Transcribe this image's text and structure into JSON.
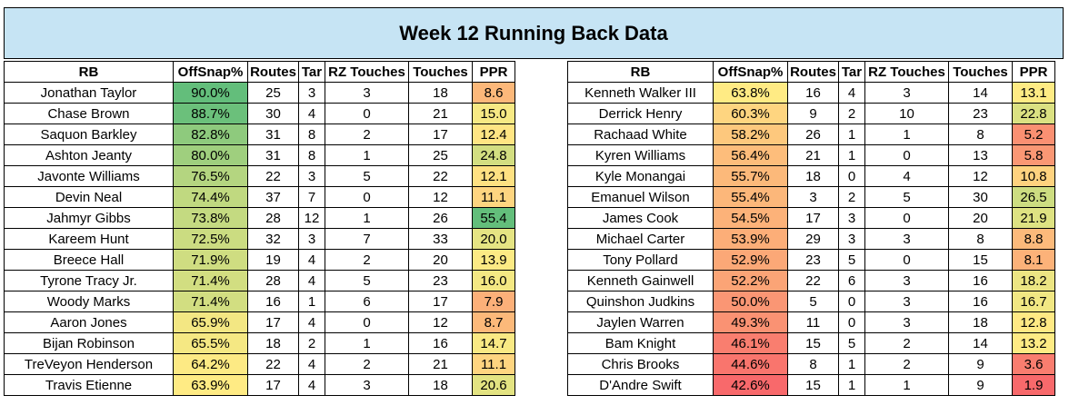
{
  "title": "Week 12 Running Back Data",
  "columns": [
    "RB",
    "OffSnap%",
    "Routes",
    "Tar",
    "RZ Touches",
    "Touches",
    "PPR"
  ],
  "colors": {
    "high": "#63be7b",
    "mid": "#ffeb84",
    "low": "#f8696b",
    "title_bg": "#c6e4f4"
  },
  "left_table": [
    {
      "rb": "Jonathan Taylor",
      "snap": "90.0%",
      "routes": "25",
      "tar": "3",
      "rz": "3",
      "touches": "18",
      "ppr": "8.6"
    },
    {
      "rb": "Chase Brown",
      "snap": "88.7%",
      "routes": "30",
      "tar": "4",
      "rz": "0",
      "touches": "21",
      "ppr": "15.0"
    },
    {
      "rb": "Saquon Barkley",
      "snap": "82.8%",
      "routes": "31",
      "tar": "8",
      "rz": "2",
      "touches": "17",
      "ppr": "12.4"
    },
    {
      "rb": "Ashton Jeanty",
      "snap": "80.0%",
      "routes": "31",
      "tar": "8",
      "rz": "1",
      "touches": "25",
      "ppr": "24.8"
    },
    {
      "rb": "Javonte Williams",
      "snap": "76.5%",
      "routes": "22",
      "tar": "3",
      "rz": "5",
      "touches": "22",
      "ppr": "12.1"
    },
    {
      "rb": "Devin Neal",
      "snap": "74.4%",
      "routes": "37",
      "tar": "7",
      "rz": "0",
      "touches": "12",
      "ppr": "11.1"
    },
    {
      "rb": "Jahmyr Gibbs",
      "snap": "73.8%",
      "routes": "28",
      "tar": "12",
      "rz": "1",
      "touches": "26",
      "ppr": "55.4"
    },
    {
      "rb": "Kareem Hunt",
      "snap": "72.5%",
      "routes": "32",
      "tar": "3",
      "rz": "7",
      "touches": "33",
      "ppr": "20.0"
    },
    {
      "rb": "Breece Hall",
      "snap": "71.9%",
      "routes": "19",
      "tar": "4",
      "rz": "2",
      "touches": "20",
      "ppr": "13.9"
    },
    {
      "rb": "Tyrone Tracy Jr.",
      "snap": "71.4%",
      "routes": "28",
      "tar": "4",
      "rz": "5",
      "touches": "23",
      "ppr": "16.0"
    },
    {
      "rb": "Woody Marks",
      "snap": "71.4%",
      "routes": "16",
      "tar": "1",
      "rz": "6",
      "touches": "17",
      "ppr": "7.9"
    },
    {
      "rb": "Aaron Jones",
      "snap": "65.9%",
      "routes": "17",
      "tar": "4",
      "rz": "0",
      "touches": "12",
      "ppr": "8.7"
    },
    {
      "rb": "Bijan Robinson",
      "snap": "65.5%",
      "routes": "18",
      "tar": "2",
      "rz": "1",
      "touches": "16",
      "ppr": "14.7"
    },
    {
      "rb": "TreVeyon Henderson",
      "snap": "64.2%",
      "routes": "22",
      "tar": "4",
      "rz": "2",
      "touches": "21",
      "ppr": "11.1"
    },
    {
      "rb": "Travis Etienne",
      "snap": "63.9%",
      "routes": "17",
      "tar": "4",
      "rz": "3",
      "touches": "18",
      "ppr": "20.6"
    }
  ],
  "right_table": [
    {
      "rb": "Kenneth Walker III",
      "snap": "63.8%",
      "routes": "16",
      "tar": "4",
      "rz": "3",
      "touches": "14",
      "ppr": "13.1"
    },
    {
      "rb": "Derrick Henry",
      "snap": "60.3%",
      "routes": "9",
      "tar": "2",
      "rz": "10",
      "touches": "23",
      "ppr": "22.8"
    },
    {
      "rb": "Rachaad White",
      "snap": "58.2%",
      "routes": "26",
      "tar": "1",
      "rz": "1",
      "touches": "8",
      "ppr": "5.2"
    },
    {
      "rb": "Kyren Williams",
      "snap": "56.4%",
      "routes": "21",
      "tar": "1",
      "rz": "0",
      "touches": "13",
      "ppr": "5.8"
    },
    {
      "rb": "Kyle Monangai",
      "snap": "55.7%",
      "routes": "18",
      "tar": "0",
      "rz": "4",
      "touches": "12",
      "ppr": "10.8"
    },
    {
      "rb": "Emanuel Wilson",
      "snap": "55.4%",
      "routes": "3",
      "tar": "2",
      "rz": "5",
      "touches": "30",
      "ppr": "26.5"
    },
    {
      "rb": "James Cook",
      "snap": "54.5%",
      "routes": "17",
      "tar": "3",
      "rz": "0",
      "touches": "20",
      "ppr": "21.9"
    },
    {
      "rb": "Michael Carter",
      "snap": "53.9%",
      "routes": "29",
      "tar": "3",
      "rz": "3",
      "touches": "8",
      "ppr": "8.8"
    },
    {
      "rb": "Tony Pollard",
      "snap": "52.9%",
      "routes": "23",
      "tar": "5",
      "rz": "0",
      "touches": "15",
      "ppr": "8.1"
    },
    {
      "rb": "Kenneth Gainwell",
      "snap": "52.2%",
      "routes": "22",
      "tar": "6",
      "rz": "3",
      "touches": "16",
      "ppr": "18.2"
    },
    {
      "rb": "Quinshon Judkins",
      "snap": "50.0%",
      "routes": "5",
      "tar": "0",
      "rz": "3",
      "touches": "16",
      "ppr": "16.7"
    },
    {
      "rb": "Jaylen Warren",
      "snap": "49.3%",
      "routes": "11",
      "tar": "0",
      "rz": "3",
      "touches": "18",
      "ppr": "12.8"
    },
    {
      "rb": "Bam Knight",
      "snap": "46.1%",
      "routes": "15",
      "tar": "5",
      "rz": "2",
      "touches": "14",
      "ppr": "13.2"
    },
    {
      "rb": "Chris Brooks",
      "snap": "44.6%",
      "routes": "8",
      "tar": "1",
      "rz": "2",
      "touches": "9",
      "ppr": "3.6"
    },
    {
      "rb": "D'Andre Swift",
      "snap": "42.6%",
      "routes": "15",
      "tar": "1",
      "rz": "1",
      "touches": "9",
      "ppr": "1.9"
    }
  ]
}
